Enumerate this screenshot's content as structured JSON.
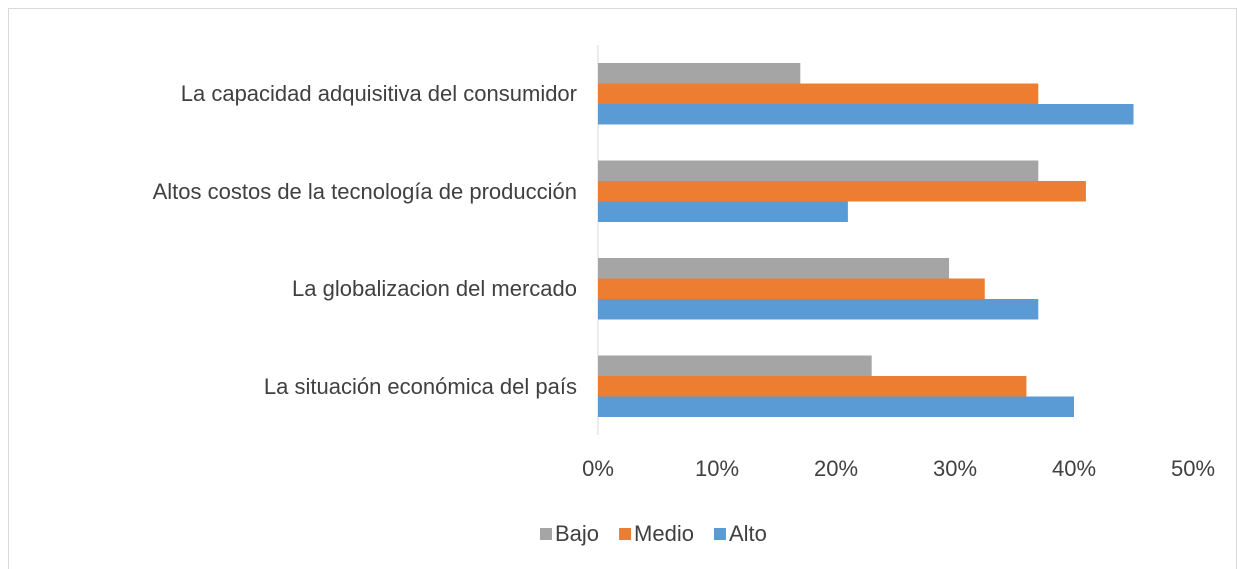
{
  "chart_data": {
    "type": "hbar",
    "categories": [
      "La capacidad adquisitiva del consumidor",
      "Altos costos de la tecnología de producción",
      "La globalizacion del mercado",
      "La situación económica del país"
    ],
    "series": [
      {
        "name": "Bajo",
        "color": "#a5a5a5",
        "values": [
          17,
          37,
          29.5,
          23
        ]
      },
      {
        "name": "Medio",
        "color": "#ed7d31",
        "values": [
          37,
          41,
          32.5,
          36
        ]
      },
      {
        "name": "Alto",
        "color": "#5b9bd5",
        "values": [
          45,
          21,
          37,
          40
        ]
      }
    ],
    "xlim": [
      0,
      50
    ],
    "xticks": [
      {
        "value": 0,
        "label": "0%"
      },
      {
        "value": 10,
        "label": "10%"
      },
      {
        "value": 20,
        "label": "20%"
      },
      {
        "value": 30,
        "label": "30%"
      },
      {
        "value": 40,
        "label": "40%"
      },
      {
        "value": 50,
        "label": "50%"
      }
    ],
    "grid": false,
    "legend": "bottom"
  }
}
